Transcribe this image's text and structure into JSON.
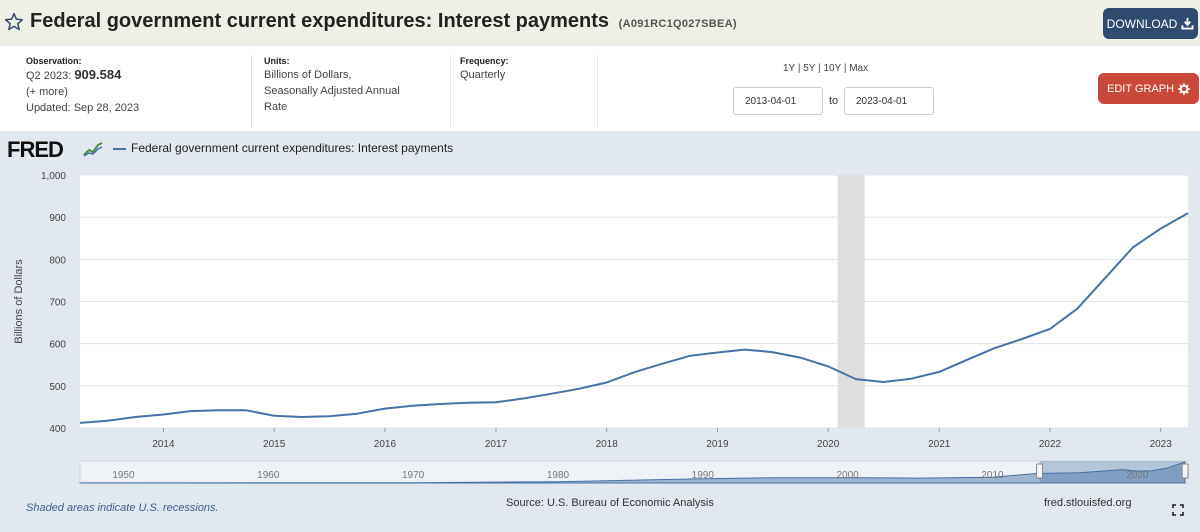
{
  "header": {
    "title": "Federal government current expenditures: Interest payments",
    "series_id": "(A091RC1Q027SBEA)",
    "download_label": "DOWNLOAD"
  },
  "meta": {
    "observation_label": "Observation:",
    "observation_period": "Q2 2023:",
    "observation_value": "909.584",
    "more": "(+ more)",
    "updated": "Updated: Sep 28, 2023",
    "units_label": "Units:",
    "units_line1": "Billions of Dollars,",
    "units_line2": "Seasonally Adjusted Annual",
    "units_line3": "Rate",
    "frequency_label": "Frequency:",
    "frequency_value": "Quarterly"
  },
  "controls": {
    "range_links": [
      "1Y",
      "5Y",
      "10Y",
      "Max"
    ],
    "start_date": "2013-04-01",
    "to_label": "to",
    "end_date": "2023-04-01",
    "edit_label": "EDIT GRAPH"
  },
  "logo": {
    "text": "FRED"
  },
  "footer": {
    "recession_note": "Shaded areas indicate U.S. recessions.",
    "source": "Source: U.S. Bureau of Economic Analysis",
    "site": "fred.stlouisfed.org"
  },
  "colors": {
    "line": "#4572a7",
    "recession": "#dedede",
    "download_button": "#2f4b70",
    "edit_button": "#c9483a",
    "title_bar": "#eff0e5",
    "graph_background": "#e2e8ef"
  },
  "chart_data": {
    "type": "line",
    "ylabel": "Billions of Dollars",
    "ylim": [
      400,
      1000
    ],
    "yticks": [
      400,
      500,
      600,
      700,
      800,
      900,
      1000
    ],
    "ytick_labels": [
      "400",
      "500",
      "600",
      "700",
      "800",
      "900",
      "1,000"
    ],
    "xlim": [
      "2013-04-01",
      "2023-04-01"
    ],
    "xticks": [
      "2014-01-01",
      "2015-01-01",
      "2016-01-01",
      "2017-01-01",
      "2018-01-01",
      "2019-01-01",
      "2020-01-01",
      "2021-01-01",
      "2022-01-01",
      "2023-01-01"
    ],
    "xtick_labels": [
      "2014",
      "2015",
      "2016",
      "2017",
      "2018",
      "2019",
      "2020",
      "2021",
      "2022",
      "2023"
    ],
    "grid": true,
    "legend": "top-left",
    "recessions": [
      [
        "2020-02-01",
        "2020-04-30"
      ]
    ],
    "series": [
      {
        "name": "Federal government current expenditures: Interest payments",
        "x": [
          "2013-04-01",
          "2013-07-01",
          "2013-10-01",
          "2014-01-01",
          "2014-04-01",
          "2014-07-01",
          "2014-10-01",
          "2015-01-01",
          "2015-04-01",
          "2015-07-01",
          "2015-10-01",
          "2016-01-01",
          "2016-04-01",
          "2016-07-01",
          "2016-10-01",
          "2017-01-01",
          "2017-04-01",
          "2017-07-01",
          "2017-10-01",
          "2018-01-01",
          "2018-04-01",
          "2018-07-01",
          "2018-10-01",
          "2019-01-01",
          "2019-04-01",
          "2019-07-01",
          "2019-10-01",
          "2020-01-01",
          "2020-04-01",
          "2020-07-01",
          "2020-10-01",
          "2021-01-01",
          "2021-04-01",
          "2021-07-01",
          "2021-10-01",
          "2022-01-01",
          "2022-04-01",
          "2022-07-01",
          "2022-10-01",
          "2023-01-01",
          "2023-04-01"
        ],
        "values": [
          412,
          417,
          426,
          432,
          440,
          442,
          442,
          429,
          426,
          428,
          434,
          446,
          453,
          457,
          460,
          461,
          470,
          481,
          493,
          508,
          532,
          552,
          571,
          579,
          586,
          580,
          567,
          546,
          516,
          509,
          517,
          533,
          561,
          589,
          611,
          635,
          683,
          755,
          828,
          873,
          909.584
        ]
      }
    ],
    "navigator_labels": [
      "1950",
      "1960",
      "1970",
      "1980",
      "1990",
      "2000",
      "2010",
      "2020"
    ]
  }
}
